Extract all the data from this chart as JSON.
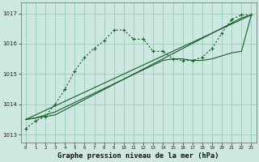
{
  "background_color": "#cce8e0",
  "grid_color": "#99ccbb",
  "line_color": "#1a5c2a",
  "title": "Graphe pression niveau de la mer (hPa)",
  "xlim": [
    -0.5,
    23.5
  ],
  "ylim": [
    1012.75,
    1017.35
  ],
  "yticks": [
    1013,
    1014,
    1015,
    1016,
    1017
  ],
  "xticks": [
    0,
    1,
    2,
    3,
    4,
    5,
    6,
    7,
    8,
    9,
    10,
    11,
    12,
    13,
    14,
    15,
    16,
    17,
    18,
    19,
    20,
    21,
    22,
    23
  ],
  "series_dotted": {
    "x": [
      0,
      1,
      2,
      3,
      4,
      5,
      6,
      7,
      8,
      9,
      10,
      11,
      12,
      13,
      14,
      15,
      16,
      17,
      18,
      19,
      20,
      21,
      22,
      23
    ],
    "y": [
      1013.2,
      1013.45,
      1013.6,
      1014.0,
      1014.5,
      1015.1,
      1015.55,
      1015.85,
      1016.1,
      1016.45,
      1016.45,
      1016.15,
      1016.15,
      1015.75,
      1015.75,
      1015.5,
      1015.45,
      1015.45,
      1015.55,
      1015.85,
      1016.35,
      1016.8,
      1016.95,
      1016.95
    ]
  },
  "series_solid1": {
    "x": [
      0,
      1,
      2,
      3,
      22,
      23
    ],
    "y": [
      1013.5,
      1013.55,
      1013.6,
      1013.65,
      1016.85,
      1016.95
    ]
  },
  "series_solid2": {
    "x": [
      0,
      23
    ],
    "y": [
      1013.5,
      1016.95
    ]
  },
  "series_solid3": {
    "x": [
      0,
      1,
      2,
      3,
      14,
      15,
      16,
      17,
      18,
      19,
      20,
      21,
      22,
      23
    ],
    "y": [
      1013.5,
      1013.55,
      1013.65,
      1013.75,
      1015.45,
      1015.5,
      1015.5,
      1015.45,
      1015.45,
      1015.5,
      1015.6,
      1015.7,
      1015.75,
      1016.95
    ]
  }
}
